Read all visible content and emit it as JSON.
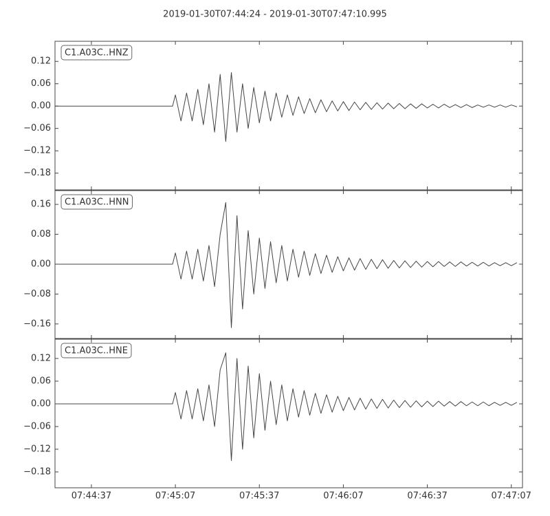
{
  "title": "2019-01-30T07:44:24  -  2019-01-30T07:47:10.995",
  "chart_data": [
    {
      "type": "line",
      "label": "C1.A03C..HNZ",
      "color": "#444444",
      "xlim": [
        "07:44:24",
        "07:47:10.995"
      ],
      "ylim": [
        -0.225,
        0.174
      ],
      "yticks": [
        {
          "value": -0.18,
          "label": "−0.18"
        },
        {
          "value": -0.12,
          "label": "−0.12"
        },
        {
          "value": -0.06,
          "label": "−0.06"
        },
        {
          "value": 0,
          "label": "0.00"
        },
        0.06,
        0.12
      ],
      "x": [
        "07:44:24",
        "07:45:06",
        "07:45:07",
        "07:45:09",
        "07:45:11",
        "07:45:13",
        "07:45:15",
        "07:45:17",
        "07:45:19",
        "07:45:21",
        "07:45:23",
        "07:45:25",
        "07:45:27",
        "07:45:29",
        "07:45:31",
        "07:45:33",
        "07:45:35",
        "07:45:37",
        "07:45:39",
        "07:45:41",
        "07:45:43",
        "07:45:45",
        "07:45:47",
        "07:45:49",
        "07:45:51",
        "07:45:53",
        "07:45:55",
        "07:45:57",
        "07:45:59",
        "07:46:01",
        "07:46:03",
        "07:46:05",
        "07:46:07",
        "07:46:09",
        "07:46:11",
        "07:46:13",
        "07:46:15",
        "07:46:17",
        "07:46:19",
        "07:46:21",
        "07:46:23",
        "07:46:25",
        "07:46:27",
        "07:46:29",
        "07:46:31",
        "07:46:33",
        "07:46:35",
        "07:46:37",
        "07:46:39",
        "07:46:41",
        "07:46:43",
        "07:46:45",
        "07:46:47",
        "07:46:49",
        "07:46:51",
        "07:46:53",
        "07:46:55",
        "07:46:57",
        "07:46:59",
        "07:47:01",
        "07:47:03",
        "07:47:05",
        "07:47:07",
        "07:47:09"
      ],
      "values": [
        0,
        0,
        0.03,
        -0.04,
        0.035,
        -0.04,
        0.045,
        -0.05,
        0.06,
        -0.07,
        0.085,
        -0.095,
        0.09,
        -0.07,
        0.06,
        -0.06,
        0.05,
        -0.045,
        0.04,
        -0.04,
        0.035,
        -0.03,
        0.03,
        -0.025,
        0.025,
        -0.02,
        0.02,
        -0.018,
        0.017,
        -0.015,
        0.014,
        -0.013,
        0.012,
        -0.012,
        0.011,
        -0.01,
        0.01,
        -0.009,
        0.009,
        -0.008,
        0.008,
        -0.007,
        0.007,
        -0.007,
        0.006,
        -0.006,
        0.006,
        -0.005,
        0.005,
        -0.005,
        0.005,
        -0.004,
        0.004,
        -0.004,
        0.004,
        -0.004,
        0.003,
        -0.003,
        0.003,
        -0.003,
        0.003,
        -0.003,
        0.003,
        -0.002
      ]
    },
    {
      "type": "line",
      "label": "C1.A03C..HNN",
      "color": "#444444",
      "xlim": [
        "07:44:24",
        "07:47:10.995"
      ],
      "ylim": [
        -0.199,
        0.197
      ],
      "yticks": [
        {
          "value": -0.16,
          "label": "−0.16"
        },
        {
          "value": -0.08,
          "label": "−0.08"
        },
        {
          "value": 0,
          "label": "0.00"
        },
        0.08,
        0.16
      ],
      "x": [
        "07:44:24",
        "07:45:06",
        "07:45:07",
        "07:45:09",
        "07:45:11",
        "07:45:13",
        "07:45:15",
        "07:45:17",
        "07:45:19",
        "07:45:21",
        "07:45:23",
        "07:45:25",
        "07:45:27",
        "07:45:29",
        "07:45:31",
        "07:45:33",
        "07:45:35",
        "07:45:37",
        "07:45:39",
        "07:45:41",
        "07:45:43",
        "07:45:45",
        "07:45:47",
        "07:45:49",
        "07:45:51",
        "07:45:53",
        "07:45:55",
        "07:45:57",
        "07:45:59",
        "07:46:01",
        "07:46:03",
        "07:46:05",
        "07:46:07",
        "07:46:09",
        "07:46:11",
        "07:46:13",
        "07:46:15",
        "07:46:17",
        "07:46:19",
        "07:46:21",
        "07:46:23",
        "07:46:25",
        "07:46:27",
        "07:46:29",
        "07:46:31",
        "07:46:33",
        "07:46:35",
        "07:46:37",
        "07:46:39",
        "07:46:41",
        "07:46:43",
        "07:46:45",
        "07:46:47",
        "07:46:49",
        "07:46:51",
        "07:46:53",
        "07:46:55",
        "07:46:57",
        "07:46:59",
        "07:47:01",
        "07:47:03",
        "07:47:05",
        "07:47:07",
        "07:47:09"
      ],
      "values": [
        0,
        0,
        0.03,
        -0.04,
        0.035,
        -0.04,
        0.04,
        -0.045,
        0.05,
        -0.06,
        0.08,
        0.165,
        -0.17,
        0.13,
        -0.12,
        0.09,
        -0.08,
        0.07,
        -0.065,
        0.06,
        -0.05,
        0.05,
        -0.045,
        0.04,
        -0.035,
        0.035,
        -0.03,
        0.028,
        -0.025,
        0.024,
        -0.022,
        0.02,
        -0.018,
        0.017,
        -0.016,
        0.015,
        -0.014,
        0.013,
        -0.012,
        0.012,
        -0.011,
        0.01,
        -0.01,
        0.009,
        -0.009,
        0.008,
        -0.008,
        0.007,
        -0.007,
        0.007,
        -0.006,
        0.006,
        -0.006,
        0.006,
        -0.005,
        0.005,
        -0.005,
        0.005,
        -0.005,
        0.004,
        -0.004,
        0.004,
        -0.004,
        0.004
      ]
    },
    {
      "type": "line",
      "label": "C1.A03C..HNE",
      "color": "#444444",
      "xlim": [
        "07:44:24",
        "07:47:10.995"
      ],
      "ylim": [
        -0.222,
        0.171
      ],
      "xticks": [
        {
          "value": "07:44:37",
          "label": "07:44:37"
        },
        {
          "value": "07:45:07",
          "label": "07:45:07"
        },
        {
          "value": "07:45:37",
          "label": "07:45:37"
        },
        {
          "value": "07:46:07",
          "label": "07:46:07"
        },
        {
          "value": "07:46:37",
          "label": "07:46:37"
        },
        {
          "value": "07:47:07",
          "label": "07:47:07"
        }
      ],
      "yticks": [
        {
          "value": -0.18,
          "label": "−0.18"
        },
        {
          "value": -0.12,
          "label": "−0.12"
        },
        {
          "value": -0.06,
          "label": "−0.06"
        },
        {
          "value": 0,
          "label": "0.00"
        },
        0.06,
        0.12
      ],
      "x": [
        "07:44:24",
        "07:45:06",
        "07:45:07",
        "07:45:09",
        "07:45:11",
        "07:45:13",
        "07:45:15",
        "07:45:17",
        "07:45:19",
        "07:45:21",
        "07:45:23",
        "07:45:25",
        "07:45:27",
        "07:45:29",
        "07:45:31",
        "07:45:33",
        "07:45:35",
        "07:45:37",
        "07:45:39",
        "07:45:41",
        "07:45:43",
        "07:45:45",
        "07:45:47",
        "07:45:49",
        "07:45:51",
        "07:45:53",
        "07:45:55",
        "07:45:57",
        "07:45:59",
        "07:46:01",
        "07:46:03",
        "07:46:05",
        "07:46:07",
        "07:46:09",
        "07:46:11",
        "07:46:13",
        "07:46:15",
        "07:46:17",
        "07:46:19",
        "07:46:21",
        "07:46:23",
        "07:46:25",
        "07:46:27",
        "07:46:29",
        "07:46:31",
        "07:46:33",
        "07:46:35",
        "07:46:37",
        "07:46:39",
        "07:46:41",
        "07:46:43",
        "07:46:45",
        "07:46:47",
        "07:46:49",
        "07:46:51",
        "07:46:53",
        "07:46:55",
        "07:46:57",
        "07:46:59",
        "07:47:01",
        "07:47:03",
        "07:47:05",
        "07:47:07",
        "07:47:09"
      ],
      "values": [
        0,
        0,
        0.03,
        -0.04,
        0.035,
        -0.04,
        0.04,
        -0.045,
        0.05,
        -0.06,
        0.09,
        0.135,
        -0.15,
        0.12,
        -0.12,
        0.1,
        -0.09,
        0.08,
        -0.07,
        0.06,
        -0.055,
        0.05,
        -0.045,
        0.04,
        -0.035,
        0.035,
        -0.03,
        0.028,
        -0.025,
        0.024,
        -0.022,
        0.02,
        -0.018,
        0.017,
        -0.016,
        0.015,
        -0.014,
        0.013,
        -0.012,
        0.012,
        -0.011,
        0.01,
        -0.01,
        0.009,
        -0.009,
        0.008,
        -0.008,
        0.007,
        -0.007,
        0.007,
        -0.006,
        0.006,
        -0.006,
        0.006,
        -0.005,
        0.005,
        -0.005,
        0.005,
        -0.005,
        0.004,
        -0.004,
        0.004,
        -0.004,
        0.004
      ]
    }
  ]
}
